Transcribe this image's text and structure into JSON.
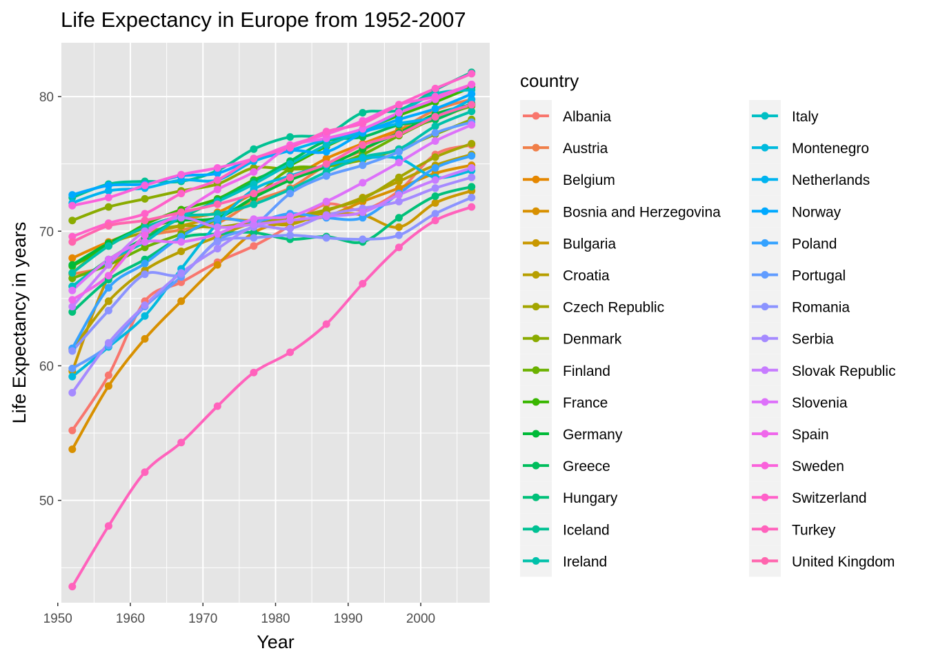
{
  "chart_data": {
    "type": "line",
    "title": "Life Expectancy in Europe from 1952-2007",
    "xlabel": "Year",
    "ylabel": "Life Expectancy in years",
    "xlim": [
      1950.5,
      2009.5
    ],
    "ylim": [
      42.4,
      84.0
    ],
    "x_ticks": [
      1950,
      1960,
      1970,
      1980,
      1990,
      2000
    ],
    "y_ticks": [
      50,
      60,
      70,
      80
    ],
    "grid": true,
    "background": "#e5e5e5",
    "smoothing": "loess",
    "legend": {
      "title": "country",
      "placement": "right",
      "columns": 2
    },
    "x": [
      1952,
      1957,
      1962,
      1967,
      1972,
      1977,
      1982,
      1987,
      1992,
      1997,
      2002,
      2007
    ],
    "series": [
      {
        "name": "Albania",
        "color": "#F8766D",
        "values": [
          55.2,
          59.3,
          64.8,
          66.2,
          67.7,
          68.9,
          70.4,
          72.0,
          71.6,
          73.0,
          75.7,
          76.4
        ]
      },
      {
        "name": "Austria",
        "color": "#F07F49",
        "values": [
          66.8,
          67.5,
          69.5,
          70.1,
          70.6,
          72.2,
          73.2,
          74.9,
          76.0,
          77.5,
          79.0,
          79.8
        ]
      },
      {
        "name": "Belgium",
        "color": "#E58700",
        "values": [
          68.0,
          69.2,
          70.2,
          70.9,
          71.4,
          72.8,
          73.9,
          75.4,
          76.5,
          77.5,
          78.3,
          79.4
        ]
      },
      {
        "name": "Bosnia and Herzegovina",
        "color": "#D89000",
        "values": [
          53.8,
          58.5,
          62.0,
          64.8,
          67.5,
          69.9,
          70.7,
          71.1,
          72.2,
          73.2,
          74.3,
          74.9
        ]
      },
      {
        "name": "Bulgaria",
        "color": "#C99800",
        "values": [
          59.6,
          66.6,
          69.5,
          70.4,
          70.9,
          70.8,
          71.1,
          71.3,
          71.2,
          70.3,
          72.1,
          73.0
        ]
      },
      {
        "name": "Croatia",
        "color": "#B79F00",
        "values": [
          61.2,
          64.8,
          67.1,
          68.5,
          69.6,
          70.6,
          70.5,
          71.5,
          72.5,
          73.7,
          74.9,
          75.7
        ]
      },
      {
        "name": "Czech Republic",
        "color": "#A3A500",
        "values": [
          66.9,
          69.0,
          69.9,
          70.4,
          70.3,
          70.7,
          71.0,
          71.6,
          72.4,
          74.0,
          75.5,
          76.5
        ]
      },
      {
        "name": "Denmark",
        "color": "#8AAB00",
        "values": [
          70.8,
          71.8,
          72.4,
          73.0,
          73.5,
          74.7,
          74.6,
          74.8,
          75.3,
          76.1,
          77.2,
          78.3
        ]
      },
      {
        "name": "Finland",
        "color": "#6BB100",
        "values": [
          66.5,
          67.5,
          68.8,
          69.8,
          70.9,
          72.5,
          74.6,
          74.8,
          75.7,
          77.1,
          78.4,
          79.3
        ]
      },
      {
        "name": "France",
        "color": "#39B600",
        "values": [
          67.4,
          68.9,
          70.5,
          71.6,
          72.4,
          73.8,
          74.9,
          76.3,
          77.5,
          78.6,
          79.6,
          80.7
        ]
      },
      {
        "name": "Germany",
        "color": "#00BA38",
        "values": [
          67.5,
          69.1,
          70.3,
          70.8,
          71.0,
          72.5,
          73.8,
          74.8,
          76.1,
          77.3,
          78.7,
          79.4
        ]
      },
      {
        "name": "Greece",
        "color": "#00BD5C",
        "values": [
          65.9,
          67.9,
          69.5,
          71.0,
          72.3,
          73.7,
          75.2,
          76.7,
          77.0,
          77.9,
          78.3,
          79.5
        ]
      },
      {
        "name": "Hungary",
        "color": "#00C079",
        "values": [
          64.0,
          66.4,
          67.9,
          69.5,
          69.8,
          69.9,
          69.4,
          69.6,
          69.2,
          71.0,
          72.6,
          73.3
        ]
      },
      {
        "name": "Iceland",
        "color": "#00C193",
        "values": [
          72.5,
          73.5,
          73.7,
          73.7,
          74.5,
          76.1,
          77.0,
          77.2,
          78.8,
          79.0,
          80.5,
          81.8
        ]
      },
      {
        "name": "Ireland",
        "color": "#00C1AA",
        "values": [
          66.9,
          68.9,
          70.3,
          71.1,
          71.3,
          72.0,
          73.1,
          74.4,
          75.5,
          76.1,
          77.8,
          78.9
        ]
      },
      {
        "name": "Italy",
        "color": "#00BFC4",
        "values": [
          65.9,
          67.8,
          69.2,
          71.1,
          72.2,
          73.5,
          75.0,
          76.4,
          77.4,
          78.8,
          80.2,
          80.5
        ]
      },
      {
        "name": "Montenegro",
        "color": "#00BADE",
        "values": [
          59.2,
          61.4,
          63.7,
          67.2,
          70.6,
          73.1,
          74.1,
          74.9,
          75.4,
          75.4,
          74.0,
          74.5
        ]
      },
      {
        "name": "Netherlands",
        "color": "#00B4F0",
        "values": [
          72.1,
          73.0,
          73.2,
          73.8,
          73.8,
          75.2,
          76.0,
          76.8,
          77.4,
          78.0,
          78.5,
          79.8
        ]
      },
      {
        "name": "Norway",
        "color": "#00A9FF",
        "values": [
          72.7,
          73.4,
          73.5,
          74.1,
          74.3,
          75.4,
          76.0,
          75.9,
          77.3,
          78.3,
          79.1,
          80.2
        ]
      },
      {
        "name": "Poland",
        "color": "#35A2FF",
        "values": [
          61.3,
          65.8,
          67.6,
          69.6,
          70.9,
          70.7,
          71.3,
          71.0,
          71.0,
          72.8,
          74.7,
          75.6
        ]
      },
      {
        "name": "Portugal",
        "color": "#619CFF",
        "values": [
          59.8,
          61.5,
          64.4,
          66.6,
          69.3,
          70.4,
          72.8,
          74.1,
          74.9,
          75.9,
          77.3,
          78.1
        ]
      },
      {
        "name": "Romania",
        "color": "#8B93FF",
        "values": [
          61.1,
          64.1,
          66.8,
          66.8,
          69.2,
          69.5,
          69.7,
          69.5,
          69.4,
          69.7,
          71.3,
          72.5
        ]
      },
      {
        "name": "Serbia",
        "color": "#A58AFF",
        "values": [
          58.0,
          61.7,
          64.5,
          66.9,
          68.7,
          70.3,
          70.2,
          71.2,
          71.7,
          72.2,
          73.2,
          74.0
        ]
      },
      {
        "name": "Slovak Republic",
        "color": "#C77CFF",
        "values": [
          64.4,
          67.5,
          70.0,
          71.0,
          70.3,
          70.5,
          70.8,
          71.1,
          71.4,
          72.7,
          73.8,
          74.7
        ]
      },
      {
        "name": "Slovenia",
        "color": "#DD71FA",
        "values": [
          65.6,
          67.9,
          69.2,
          69.2,
          69.8,
          70.9,
          71.1,
          72.2,
          73.6,
          75.1,
          76.7,
          77.9
        ]
      },
      {
        "name": "Spain",
        "color": "#EF67EB",
        "values": [
          64.9,
          66.7,
          69.7,
          71.4,
          73.1,
          74.4,
          76.3,
          76.9,
          77.6,
          78.8,
          79.8,
          80.9
        ]
      },
      {
        "name": "Sweden",
        "color": "#FA62DB",
        "values": [
          71.9,
          72.5,
          73.4,
          74.2,
          74.7,
          75.4,
          76.4,
          77.2,
          78.2,
          79.4,
          80.0,
          80.9
        ]
      },
      {
        "name": "Switzerland",
        "color": "#FF61C9",
        "values": [
          69.6,
          70.6,
          71.3,
          72.8,
          73.8,
          75.4,
          76.2,
          77.4,
          78.0,
          79.4,
          80.6,
          81.7
        ]
      },
      {
        "name": "Turkey",
        "color": "#FF62BC",
        "values": [
          43.6,
          48.1,
          52.1,
          54.3,
          57.0,
          59.5,
          61.0,
          63.1,
          66.1,
          68.8,
          70.8,
          71.8
        ]
      },
      {
        "name": "United Kingdom",
        "color": "#FF65AE",
        "values": [
          69.2,
          70.4,
          70.8,
          71.4,
          72.0,
          72.8,
          74.0,
          75.0,
          76.4,
          77.2,
          78.5,
          79.4
        ]
      }
    ]
  }
}
